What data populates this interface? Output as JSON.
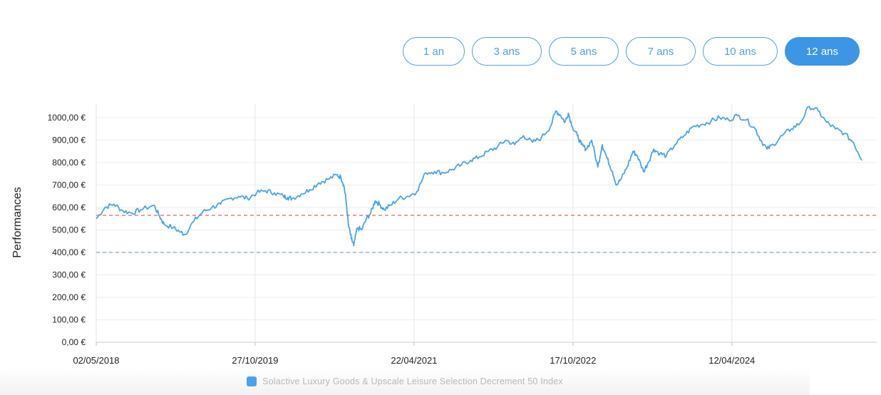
{
  "periods": {
    "selected_color": "#3d95e6",
    "items": [
      {
        "label": "1 an",
        "active": false
      },
      {
        "label": "3 ans",
        "active": false
      },
      {
        "label": "5 ans",
        "active": false
      },
      {
        "label": "7 ans",
        "active": false
      },
      {
        "label": "10 ans",
        "active": false
      },
      {
        "label": "12 ans",
        "active": true
      }
    ]
  },
  "chart_data": {
    "type": "line",
    "ylabel": "Performances",
    "ylim": [
      0,
      1000
    ],
    "y_ticks": [
      "0,00 €",
      "100,00 €",
      "200,00 €",
      "300,00 €",
      "400,00 €",
      "500,00 €",
      "600,00 €",
      "700,00 €",
      "800,00 €",
      "900,00 €",
      "1000,00 €"
    ],
    "x_range": [
      "2018-05-02",
      "2025-08-20"
    ],
    "x_ticks": [
      {
        "date": "2018-05-02",
        "label": "02/05/2018"
      },
      {
        "date": "2019-10-27",
        "label": "27/10/2019"
      },
      {
        "date": "2021-04-22",
        "label": "22/04/2021"
      },
      {
        "date": "2022-10-17",
        "label": "17/10/2022"
      },
      {
        "date": "2024-04-12",
        "label": "12/04/2024"
      }
    ],
    "grid": true,
    "reference_lines": [
      {
        "value": 565,
        "color": "#e88a8a",
        "style": "dashed"
      },
      {
        "value": 400,
        "color": "#9bb3e0",
        "style": "dashed"
      }
    ],
    "legend_position": "bottom",
    "series": [
      {
        "name": "Solactive Luxury Goods & Upscale Leisure Selection Decrement 50 Index",
        "color": "#4aa3ea",
        "points": [
          [
            "2018-05-02",
            550
          ],
          [
            "2018-06-01",
            600
          ],
          [
            "2018-07-01",
            615
          ],
          [
            "2018-08-01",
            585
          ],
          [
            "2018-09-01",
            575
          ],
          [
            "2018-10-01",
            590
          ],
          [
            "2018-11-15",
            610
          ],
          [
            "2018-12-05",
            560
          ],
          [
            "2018-12-20",
            525
          ],
          [
            "2019-01-20",
            510
          ],
          [
            "2019-02-15",
            490
          ],
          [
            "2019-03-01",
            480
          ],
          [
            "2019-04-01",
            540
          ],
          [
            "2019-05-01",
            580
          ],
          [
            "2019-06-01",
            600
          ],
          [
            "2019-07-01",
            615
          ],
          [
            "2019-08-01",
            640
          ],
          [
            "2019-09-01",
            650
          ],
          [
            "2019-10-01",
            640
          ],
          [
            "2019-11-01",
            665
          ],
          [
            "2019-12-01",
            675
          ],
          [
            "2020-01-01",
            665
          ],
          [
            "2020-02-01",
            650
          ],
          [
            "2020-02-15",
            645
          ],
          [
            "2020-03-01",
            640
          ],
          [
            "2020-04-01",
            660
          ],
          [
            "2020-05-01",
            680
          ],
          [
            "2020-06-01",
            710
          ],
          [
            "2020-07-01",
            725
          ],
          [
            "2020-08-01",
            745
          ],
          [
            "2020-08-15",
            735
          ],
          [
            "2020-08-25",
            700
          ],
          [
            "2020-09-01",
            640
          ],
          [
            "2020-09-10",
            520
          ],
          [
            "2020-09-20",
            460
          ],
          [
            "2020-09-28",
            430
          ],
          [
            "2020-10-10",
            510
          ],
          [
            "2020-10-25",
            500
          ],
          [
            "2020-11-10",
            550
          ],
          [
            "2020-11-25",
            575
          ],
          [
            "2020-12-10",
            630
          ],
          [
            "2020-12-25",
            615
          ],
          [
            "2021-01-10",
            590
          ],
          [
            "2021-02-01",
            610
          ],
          [
            "2021-03-01",
            640
          ],
          [
            "2021-04-01",
            650
          ],
          [
            "2021-05-01",
            670
          ],
          [
            "2021-06-01",
            755
          ],
          [
            "2021-07-01",
            760
          ],
          [
            "2021-08-01",
            755
          ],
          [
            "2021-09-01",
            770
          ],
          [
            "2021-10-01",
            790
          ],
          [
            "2021-11-01",
            810
          ],
          [
            "2021-12-01",
            825
          ],
          [
            "2022-01-01",
            850
          ],
          [
            "2022-02-01",
            870
          ],
          [
            "2022-03-01",
            900
          ],
          [
            "2022-04-01",
            880
          ],
          [
            "2022-05-01",
            920
          ],
          [
            "2022-06-01",
            890
          ],
          [
            "2022-07-01",
            910
          ],
          [
            "2022-08-01",
            960
          ],
          [
            "2022-08-20",
            1030
          ],
          [
            "2022-09-05",
            1010
          ],
          [
            "2022-09-20",
            980
          ],
          [
            "2022-10-01",
            1020
          ],
          [
            "2022-10-15",
            960
          ],
          [
            "2022-11-01",
            920
          ],
          [
            "2022-11-15",
            880
          ],
          [
            "2022-12-01",
            860
          ],
          [
            "2022-12-20",
            900
          ],
          [
            "2023-01-10",
            780
          ],
          [
            "2023-01-25",
            880
          ],
          [
            "2023-02-10",
            820
          ],
          [
            "2023-03-01",
            760
          ],
          [
            "2023-03-15",
            700
          ],
          [
            "2023-04-01",
            730
          ],
          [
            "2023-04-20",
            780
          ],
          [
            "2023-05-10",
            850
          ],
          [
            "2023-05-25",
            830
          ],
          [
            "2023-06-15",
            760
          ],
          [
            "2023-07-01",
            800
          ],
          [
            "2023-07-20",
            860
          ],
          [
            "2023-08-10",
            840
          ],
          [
            "2023-09-01",
            830
          ],
          [
            "2023-10-01",
            880
          ],
          [
            "2023-11-01",
            920
          ],
          [
            "2023-12-01",
            960
          ],
          [
            "2024-01-01",
            970
          ],
          [
            "2024-02-01",
            985
          ],
          [
            "2024-03-01",
            1000
          ],
          [
            "2024-04-01",
            990
          ],
          [
            "2024-05-01",
            1010
          ],
          [
            "2024-06-01",
            990
          ],
          [
            "2024-07-01",
            950
          ],
          [
            "2024-07-20",
            900
          ],
          [
            "2024-08-10",
            860
          ],
          [
            "2024-09-01",
            880
          ],
          [
            "2024-10-01",
            920
          ],
          [
            "2024-11-01",
            950
          ],
          [
            "2024-12-01",
            975
          ],
          [
            "2025-01-01",
            1050
          ],
          [
            "2025-02-01",
            1030
          ],
          [
            "2025-03-01",
            980
          ],
          [
            "2025-04-01",
            950
          ],
          [
            "2025-05-01",
            930
          ],
          [
            "2025-06-01",
            890
          ],
          [
            "2025-07-01",
            810
          ]
        ]
      }
    ]
  },
  "legend": {
    "label": "Solactive Luxury Goods & Upscale Leisure Selection Decrement 50 Index",
    "swatch_color": "#4aa3ea"
  }
}
